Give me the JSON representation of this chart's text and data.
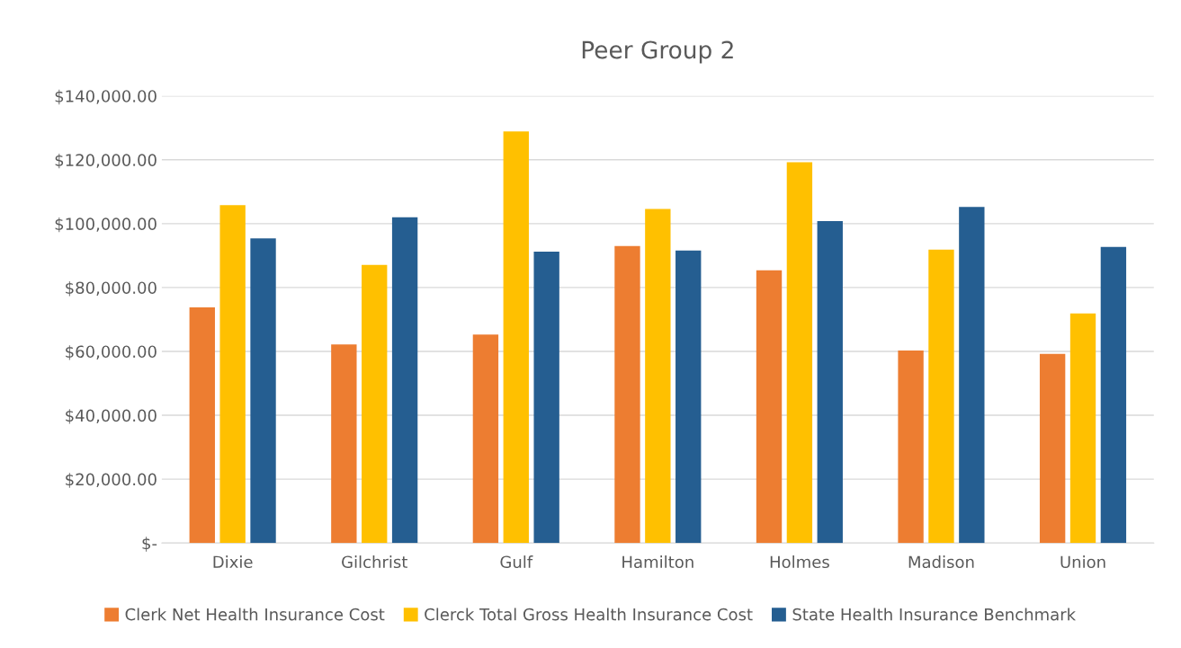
{
  "chart_data": {
    "type": "bar",
    "title": "Peer Group 2",
    "categories": [
      "Dixie",
      "Gilchrist",
      "Gulf",
      "Hamilton",
      "Holmes",
      "Madison",
      "Union"
    ],
    "series": [
      {
        "name": "Clerk Net Health Insurance Cost",
        "color": "#ed7d31",
        "values": [
          73800,
          62200,
          65300,
          93000,
          85400,
          60300,
          59200
        ]
      },
      {
        "name": "Clerck Total Gross Health Insurance Cost",
        "color": "#ffc000",
        "values": [
          105800,
          87100,
          128900,
          104600,
          119200,
          91900,
          71900
        ]
      },
      {
        "name": "State Health Insurance Benchmark",
        "color": "#255e91",
        "values": [
          95400,
          102000,
          91200,
          91600,
          100800,
          105200,
          92700
        ]
      }
    ],
    "ylim": [
      0,
      140000
    ],
    "yticks": [
      {
        "value": 0,
        "label": "$-"
      },
      {
        "value": 20000,
        "label": "$20,000.00"
      },
      {
        "value": 40000,
        "label": "$40,000.00"
      },
      {
        "value": 60000,
        "label": "$60,000.00"
      },
      {
        "value": 80000,
        "label": "$80,000.00"
      },
      {
        "value": 100000,
        "label": "$100,000.00"
      },
      {
        "value": 120000,
        "label": "$120,000.00"
      },
      {
        "value": 140000,
        "label": "$140,000.00"
      }
    ],
    "grid": "y",
    "legend": "bottom"
  }
}
